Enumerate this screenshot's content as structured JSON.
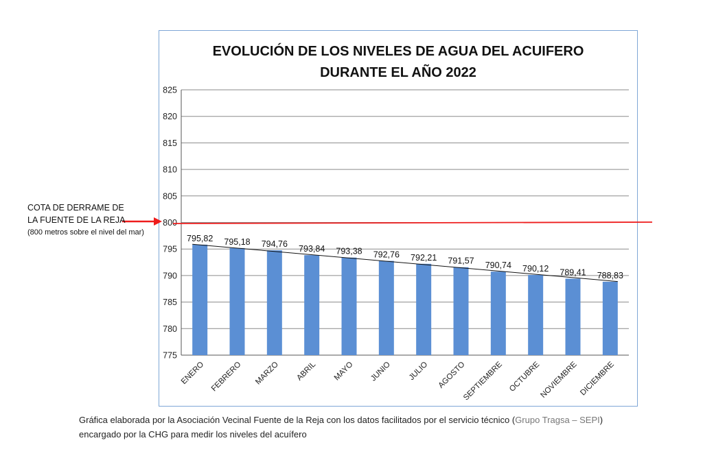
{
  "chart_data": {
    "type": "bar",
    "title_lines": [
      "EVOLUCIÓN DE LOS NIVELES DE AGUA DEL ACUIFERO",
      "DURANTE EL AÑO 2022"
    ],
    "categories": [
      "ENERO",
      "FEBRERO",
      "MARZO",
      "ABRIL",
      "MAYO",
      "JUNIO",
      "JULIO",
      "AGOSTO",
      "SEPTIEMBRE",
      "OCTUBRE",
      "NOVIEMBRE",
      "DICIEMBRE"
    ],
    "values": [
      795.82,
      795.18,
      794.76,
      793.84,
      793.38,
      792.76,
      792.21,
      791.57,
      790.74,
      790.12,
      789.41,
      788.83
    ],
    "value_labels": [
      "795,82",
      "795,18",
      "794,76",
      "793,84",
      "793,38",
      "792,76",
      "792,21",
      "791,57",
      "790,74",
      "790,12",
      "789,41",
      "788,83"
    ],
    "ylim": [
      775,
      825
    ],
    "yticks": [
      775,
      780,
      785,
      790,
      795,
      800,
      805,
      810,
      815,
      820,
      825
    ],
    "grid": true,
    "trendline": true,
    "reference_line": {
      "value": 800,
      "color": "#ee1c1c"
    },
    "bar_color": "#5b8fd4"
  },
  "annotation": {
    "line1": "COTA DE DERRAME DE",
    "line2": "LA FUENTE DE LA REJA",
    "line3": "(800 metros sobre el nivel del mar)"
  },
  "caption": {
    "line1_main": "Gráfica elaborada por la Asociación Vecinal Fuente de la Reja con los datos facilitados por el servicio técnico (",
    "line1_source": "Grupo Tragsa – SEPI",
    "line1_end": ")",
    "line2": "encargado por la CHG para medir los niveles del acuífero"
  }
}
